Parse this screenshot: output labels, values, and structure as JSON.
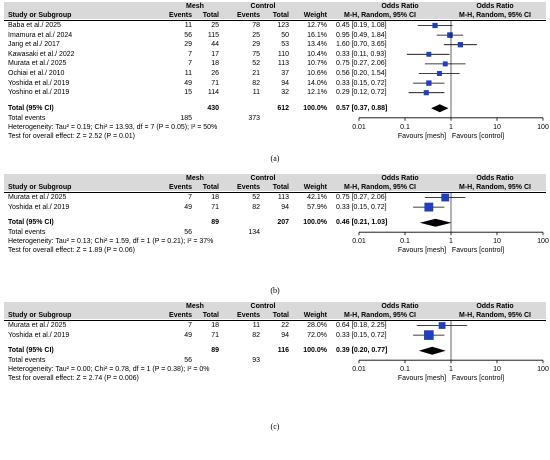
{
  "panels": [
    {
      "caption": "(a)",
      "headers": {
        "study": "Study or Subgroup",
        "group1": "Mesh",
        "group2": "Control",
        "events": "Events",
        "total": "Total",
        "weight": "Weight",
        "or_title": "Odds Ratio",
        "or_sub": "M-H, Random, 95% CI",
        "plot_title": "Odds Ratio",
        "plot_sub": "M-H, Random, 95% CI"
      },
      "rows": [
        {
          "study": "Baba et al./ 2025",
          "e1": "11",
          "t1": "25",
          "e2": "78",
          "t2": "123",
          "weight": "12.7%",
          "ci": "0.45 [0.19, 1.08]"
        },
        {
          "study": "Imamura et al./ 2024",
          "e1": "56",
          "t1": "115",
          "e2": "25",
          "t2": "50",
          "weight": "16.1%",
          "ci": "0.95 [0.49, 1.84]"
        },
        {
          "study": "Jang et al./ 2017",
          "e1": "29",
          "t1": "44",
          "e2": "29",
          "t2": "53",
          "weight": "13.4%",
          "ci": "1.60 [0.70, 3.65]"
        },
        {
          "study": "Kawasaki et al./ 2022",
          "e1": "7",
          "t1": "17",
          "e2": "75",
          "t2": "110",
          "weight": "10.4%",
          "ci": "0.33 [0.11, 0.93]"
        },
        {
          "study": "Murata et al./ 2025",
          "e1": "7",
          "t1": "18",
          "e2": "52",
          "t2": "113",
          "weight": "10.7%",
          "ci": "0.75 [0.27, 2.06]"
        },
        {
          "study": "Ochiai et al./ 2010",
          "e1": "11",
          "t1": "26",
          "e2": "21",
          "t2": "37",
          "weight": "10.6%",
          "ci": "0.56 [0.20, 1.54]"
        },
        {
          "study": "Yoshida et al./ 2019",
          "e1": "49",
          "t1": "71",
          "e2": "82",
          "t2": "94",
          "weight": "14.0%",
          "ci": "0.33 [0.15, 0.72]"
        },
        {
          "study": "Yoshino et al./ 2019",
          "e1": "15",
          "t1": "114",
          "e2": "11",
          "t2": "32",
          "weight": "12.1%",
          "ci": "0.29 [0.12, 0.72]"
        }
      ],
      "total": {
        "label": "Total (95% CI)",
        "t1": "430",
        "t2": "612",
        "weight": "100.0%",
        "ci": "0.57 [0.37, 0.88]"
      },
      "total_events": {
        "label": "Total events",
        "e1": "185",
        "e2": "373"
      },
      "heterogeneity": "Heterogeneity: Tau² = 0.19; Chi² = 13.93, df = 7 (P = 0.05); I² = 50%",
      "overall": "Test for overall effect: Z = 2.52 (P = 0.01)",
      "axis": {
        "ticks": [
          "0.01",
          "0.1",
          "1",
          "10",
          "100"
        ],
        "favours_left": "Favours [mesh]",
        "favours_right": "Favours [control]"
      }
    },
    {
      "caption": "(b)",
      "headers": {
        "study": "Study or Subgroup",
        "group1": "Mesh",
        "group2": "Control",
        "events": "Events",
        "total": "Total",
        "weight": "Weight",
        "or_title": "Odds Ratio",
        "or_sub": "M-H, Random, 95% CI",
        "plot_title": "Odds Ratio",
        "plot_sub": "M-H, Random, 95% CI"
      },
      "rows": [
        {
          "study": "Murata et al./ 2025",
          "e1": "7",
          "t1": "18",
          "e2": "52",
          "t2": "113",
          "weight": "42.1%",
          "ci": "0.75 [0.27, 2.06]"
        },
        {
          "study": "Yoshida et al./ 2019",
          "e1": "49",
          "t1": "71",
          "e2": "82",
          "t2": "94",
          "weight": "57.9%",
          "ci": "0.33 [0.15, 0.72]"
        }
      ],
      "total": {
        "label": "Total (95% CI)",
        "t1": "89",
        "t2": "207",
        "weight": "100.0%",
        "ci": "0.46 [0.21, 1.03]"
      },
      "total_events": {
        "label": "Total events",
        "e1": "56",
        "e2": "134"
      },
      "heterogeneity": "Heterogeneity: Tau² = 0.13; Chi² = 1.59, df = 1 (P = 0.21); I² = 37%",
      "overall": "Test for overall effect: Z = 1.89 (P = 0.06)",
      "axis": {
        "ticks": [
          "0.01",
          "0.1",
          "1",
          "10",
          "100"
        ],
        "favours_left": "Favours [mesh]",
        "favours_right": "Favours [control]"
      }
    },
    {
      "caption": "(c)",
      "headers": {
        "study": "Study or Subgroup",
        "group1": "Mesh",
        "group2": "Control",
        "events": "Events",
        "total": "Total",
        "weight": "Weight",
        "or_title": "Odds Ratio",
        "or_sub": "M-H, Random, 95% CI",
        "plot_title": "Odds Ratio",
        "plot_sub": "M-H, Random, 95% CI"
      },
      "rows": [
        {
          "study": "Murata et al./ 2025",
          "e1": "7",
          "t1": "18",
          "e2": "11",
          "t2": "22",
          "weight": "28.0%",
          "ci": "0.64 [0.18, 2.25]"
        },
        {
          "study": "Yoshida et al./ 2019",
          "e1": "49",
          "t1": "71",
          "e2": "82",
          "t2": "94",
          "weight": "72.0%",
          "ci": "0.33 [0.15, 0.72]"
        }
      ],
      "total": {
        "label": "Total (95% CI)",
        "t1": "89",
        "t2": "116",
        "weight": "100.0%",
        "ci": "0.39 [0.20, 0.77]"
      },
      "total_events": {
        "label": "Total events",
        "e1": "56",
        "e2": "93"
      },
      "heterogeneity": "Heterogeneity: Tau² = 0.00; Chi² = 0.78, df = 1 (P = 0.38); I² = 0%",
      "overall": "Test for overall effect: Z = 2.74 (P = 0.006)",
      "axis": {
        "ticks": [
          "0.01",
          "0.1",
          "1",
          "10",
          "100"
        ],
        "favours_left": "Favours [mesh]",
        "favours_right": "Favours [control]"
      }
    }
  ],
  "chart_data": [
    {
      "type": "forest",
      "scale": "log",
      "xlim": [
        0.01,
        100
      ],
      "reference": 1,
      "series": [
        {
          "name": "Baba et al./ 2025",
          "or": 0.45,
          "lo": 0.19,
          "hi": 1.08,
          "weight": 12.7
        },
        {
          "name": "Imamura et al./ 2024",
          "or": 0.95,
          "lo": 0.49,
          "hi": 1.84,
          "weight": 16.1
        },
        {
          "name": "Jang et al./ 2017",
          "or": 1.6,
          "lo": 0.7,
          "hi": 3.65,
          "weight": 13.4
        },
        {
          "name": "Kawasaki et al./ 2022",
          "or": 0.33,
          "lo": 0.11,
          "hi": 0.93,
          "weight": 10.4
        },
        {
          "name": "Murata et al./ 2025",
          "or": 0.75,
          "lo": 0.27,
          "hi": 2.06,
          "weight": 10.7
        },
        {
          "name": "Ochiai et al./ 2010",
          "or": 0.56,
          "lo": 0.2,
          "hi": 1.54,
          "weight": 10.6
        },
        {
          "name": "Yoshida et al./ 2019",
          "or": 0.33,
          "lo": 0.15,
          "hi": 0.72,
          "weight": 14.0
        },
        {
          "name": "Yoshino et al./ 2019",
          "or": 0.29,
          "lo": 0.12,
          "hi": 0.72,
          "weight": 12.1
        }
      ],
      "pooled": {
        "or": 0.57,
        "lo": 0.37,
        "hi": 0.88
      }
    },
    {
      "type": "forest",
      "scale": "log",
      "xlim": [
        0.01,
        100
      ],
      "reference": 1,
      "series": [
        {
          "name": "Murata et al./ 2025",
          "or": 0.75,
          "lo": 0.27,
          "hi": 2.06,
          "weight": 42.1
        },
        {
          "name": "Yoshida et al./ 2019",
          "or": 0.33,
          "lo": 0.15,
          "hi": 0.72,
          "weight": 57.9
        }
      ],
      "pooled": {
        "or": 0.46,
        "lo": 0.21,
        "hi": 1.03
      }
    },
    {
      "type": "forest",
      "scale": "log",
      "xlim": [
        0.01,
        100
      ],
      "reference": 1,
      "series": [
        {
          "name": "Murata et al./ 2025",
          "or": 0.64,
          "lo": 0.18,
          "hi": 2.25,
          "weight": 28.0
        },
        {
          "name": "Yoshida et al./ 2019",
          "or": 0.33,
          "lo": 0.15,
          "hi": 0.72,
          "weight": 72.0
        }
      ],
      "pooled": {
        "or": 0.39,
        "lo": 0.2,
        "hi": 0.77
      }
    }
  ]
}
